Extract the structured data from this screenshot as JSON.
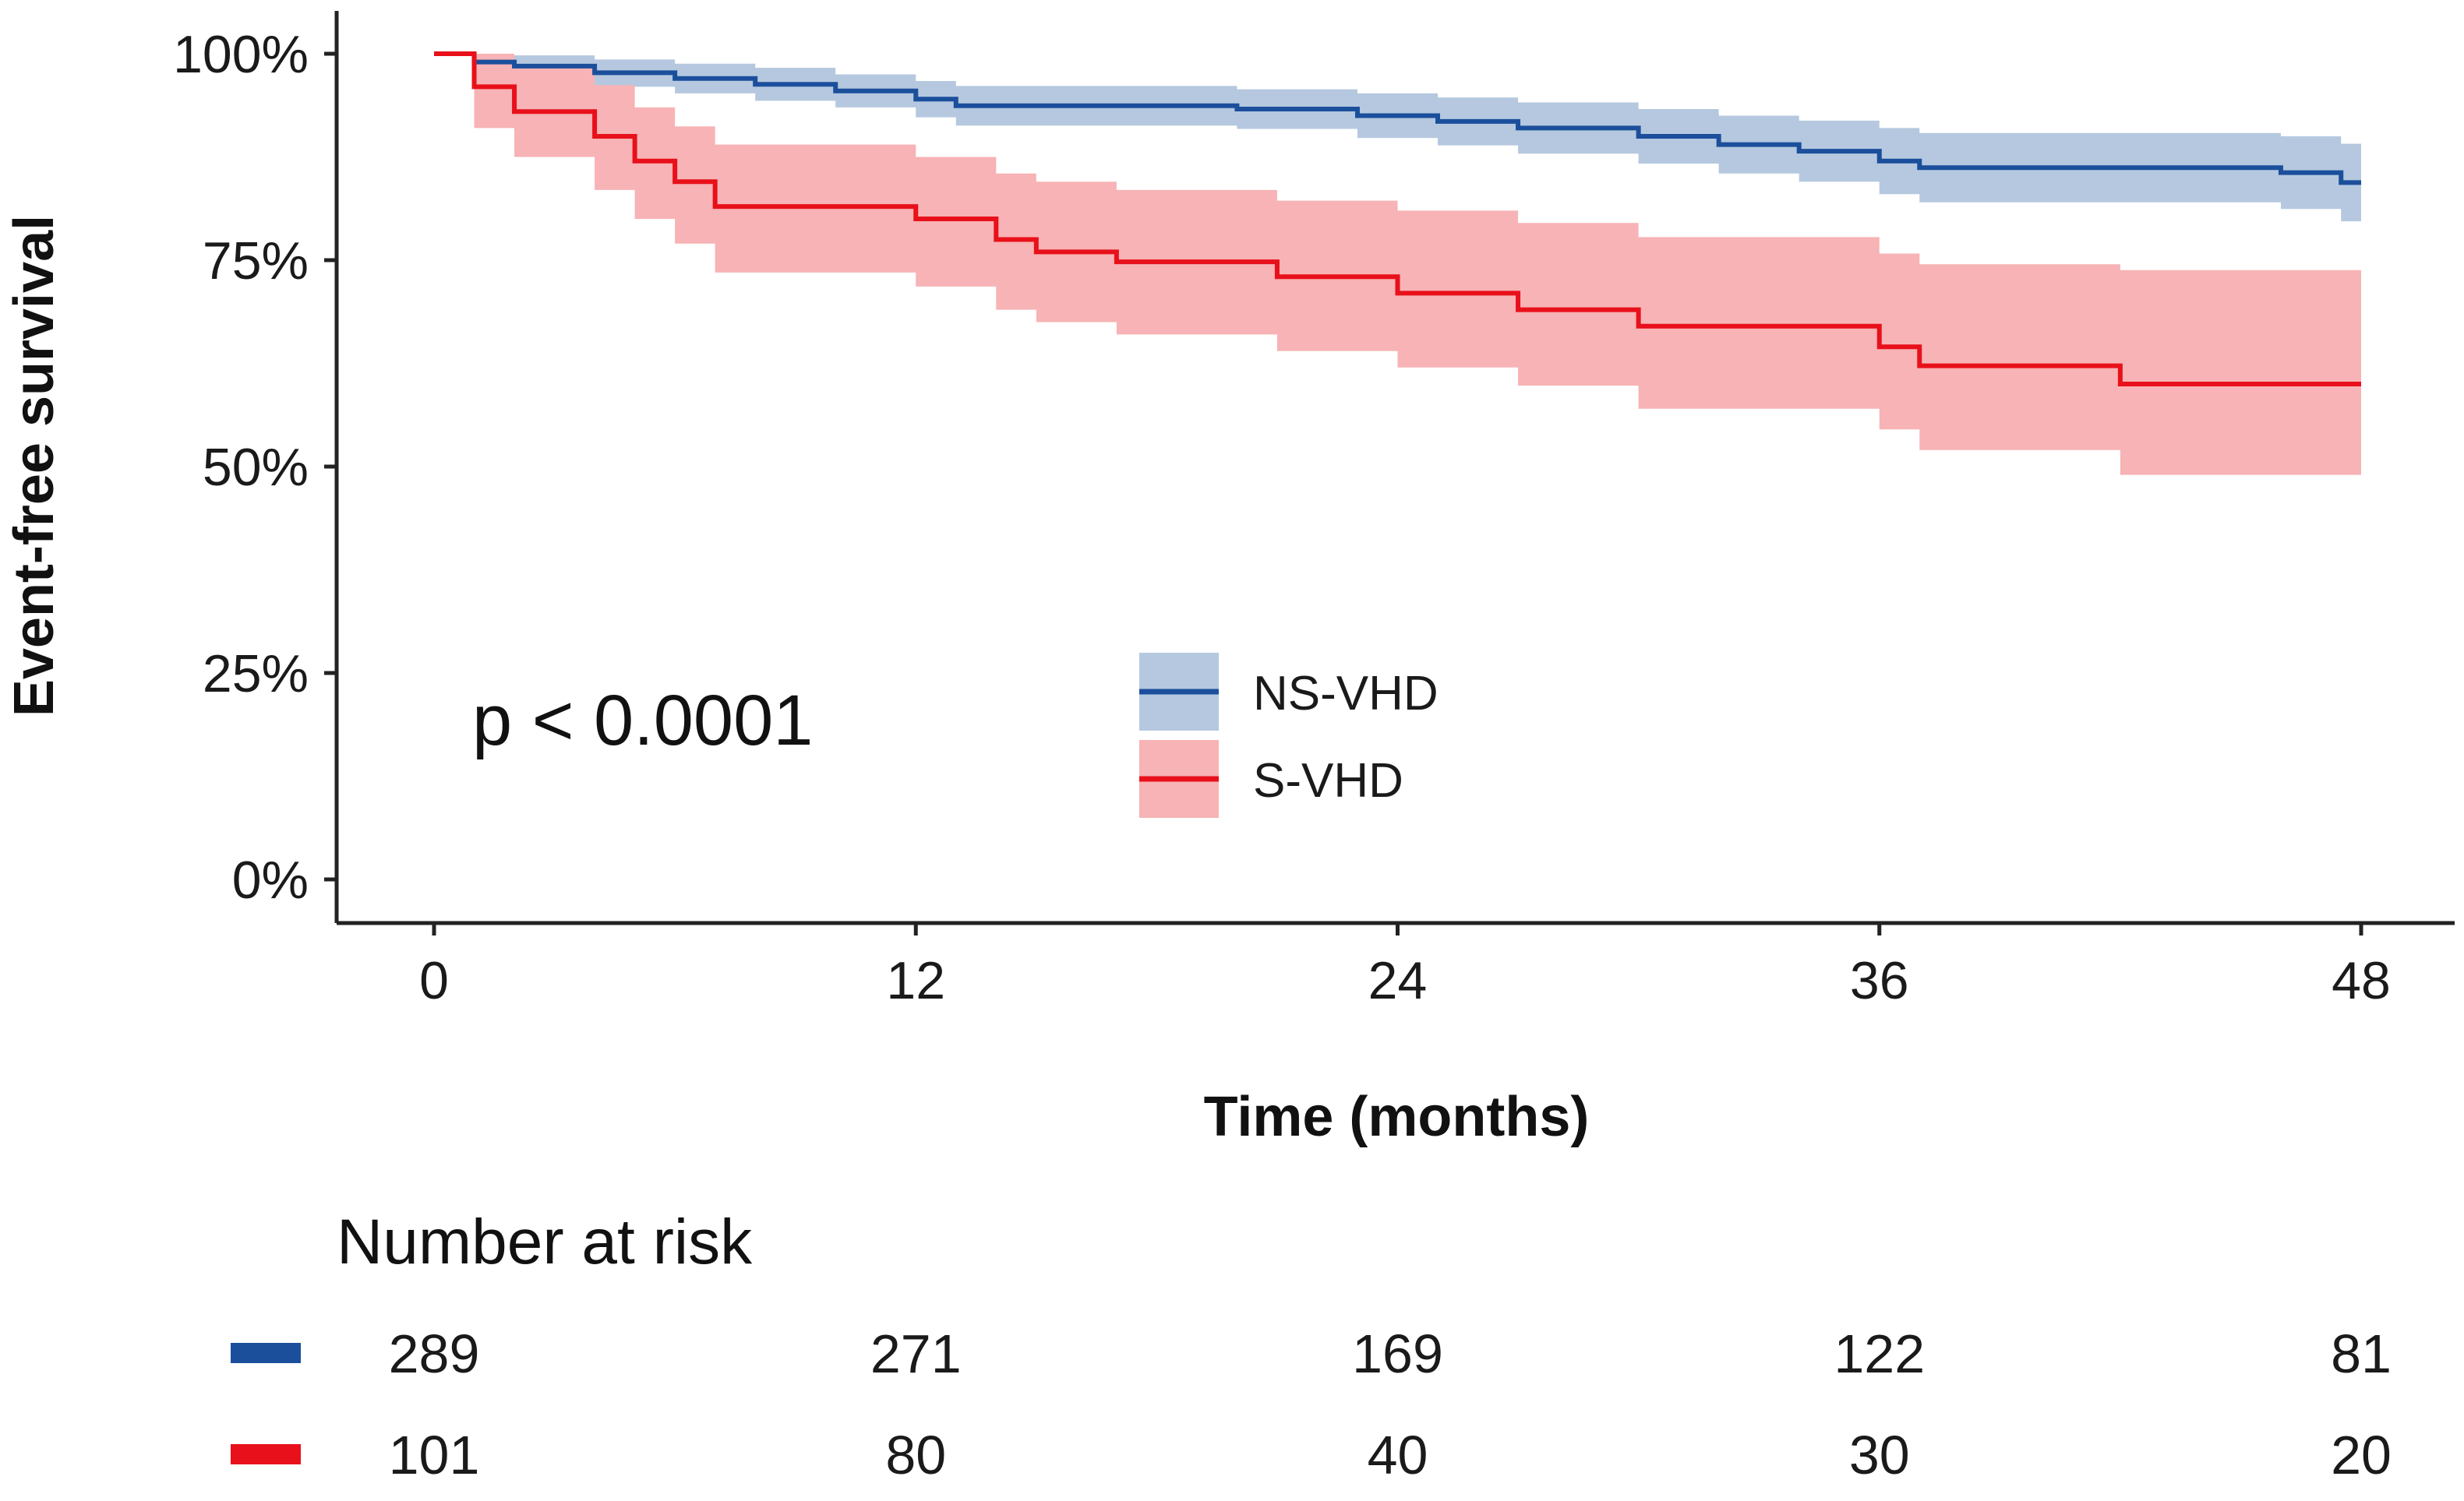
{
  "chart_data": {
    "type": "line",
    "subtype": "kaplan-meier",
    "xlabel": "Time (months)",
    "ylabel": "Event-free survival",
    "xlim": [
      0,
      48
    ],
    "ylim": [
      0,
      1
    ],
    "x_ticks": [
      0,
      12,
      24,
      36,
      48
    ],
    "y_ticks": [
      0,
      0.25,
      0.5,
      0.75,
      1.0
    ],
    "y_tick_labels": [
      "0%",
      "25%",
      "50%",
      "75%",
      "100%"
    ],
    "annotation": "p < 0.0001",
    "legend_position": "center",
    "series": [
      {
        "name": "NS-VHD",
        "color": "#1b4f9c",
        "band_color": "#b5c8df",
        "steps": [
          [
            0,
            1.0
          ],
          [
            1,
            0.99
          ],
          [
            2,
            0.985
          ],
          [
            4,
            0.977
          ],
          [
            6,
            0.97
          ],
          [
            8,
            0.963
          ],
          [
            10,
            0.955
          ],
          [
            12,
            0.945
          ],
          [
            13,
            0.937
          ],
          [
            15,
            0.937
          ],
          [
            20,
            0.933
          ],
          [
            23,
            0.925
          ],
          [
            25,
            0.918
          ],
          [
            27,
            0.91
          ],
          [
            30,
            0.9
          ],
          [
            32,
            0.89
          ],
          [
            34,
            0.882
          ],
          [
            36,
            0.87
          ],
          [
            37,
            0.862
          ],
          [
            46,
            0.856
          ],
          [
            47.5,
            0.844
          ],
          [
            48,
            0.844
          ]
        ],
        "lower": [
          [
            0,
            1.0
          ],
          [
            1,
            0.975
          ],
          [
            2,
            0.97
          ],
          [
            4,
            0.96
          ],
          [
            6,
            0.952
          ],
          [
            8,
            0.943
          ],
          [
            10,
            0.935
          ],
          [
            12,
            0.923
          ],
          [
            13,
            0.913
          ],
          [
            15,
            0.913
          ],
          [
            20,
            0.909
          ],
          [
            23,
            0.898
          ],
          [
            25,
            0.889
          ],
          [
            27,
            0.879
          ],
          [
            30,
            0.867
          ],
          [
            32,
            0.855
          ],
          [
            34,
            0.845
          ],
          [
            36,
            0.83
          ],
          [
            37,
            0.82
          ],
          [
            46,
            0.812
          ],
          [
            47.5,
            0.797
          ],
          [
            48,
            0.797
          ]
        ],
        "upper": [
          [
            0,
            1.0
          ],
          [
            1,
            1.0
          ],
          [
            2,
            0.998
          ],
          [
            4,
            0.993
          ],
          [
            6,
            0.988
          ],
          [
            8,
            0.983
          ],
          [
            10,
            0.975
          ],
          [
            12,
            0.967
          ],
          [
            13,
            0.961
          ],
          [
            15,
            0.961
          ],
          [
            20,
            0.957
          ],
          [
            23,
            0.952
          ],
          [
            25,
            0.947
          ],
          [
            27,
            0.941
          ],
          [
            30,
            0.933
          ],
          [
            32,
            0.925
          ],
          [
            34,
            0.919
          ],
          [
            36,
            0.91
          ],
          [
            37,
            0.904
          ],
          [
            46,
            0.9
          ],
          [
            47.5,
            0.891
          ],
          [
            48,
            0.891
          ]
        ]
      },
      {
        "name": "S-VHD",
        "color": "#e8101a",
        "band_color": "#f7b3b5",
        "steps": [
          [
            0,
            1.0
          ],
          [
            1,
            0.96
          ],
          [
            2,
            0.93
          ],
          [
            4,
            0.9
          ],
          [
            5,
            0.87
          ],
          [
            6,
            0.845
          ],
          [
            7,
            0.815
          ],
          [
            12,
            0.8
          ],
          [
            14,
            0.775
          ],
          [
            15,
            0.76
          ],
          [
            17,
            0.748
          ],
          [
            21,
            0.73
          ],
          [
            24,
            0.71
          ],
          [
            27,
            0.69
          ],
          [
            30,
            0.67
          ],
          [
            36,
            0.645
          ],
          [
            37,
            0.622
          ],
          [
            42,
            0.6
          ],
          [
            48,
            0.6
          ]
        ],
        "lower": [
          [
            0,
            1.0
          ],
          [
            1,
            0.91
          ],
          [
            2,
            0.875
          ],
          [
            4,
            0.835
          ],
          [
            5,
            0.8
          ],
          [
            6,
            0.77
          ],
          [
            7,
            0.735
          ],
          [
            12,
            0.718
          ],
          [
            14,
            0.69
          ],
          [
            15,
            0.675
          ],
          [
            17,
            0.66
          ],
          [
            21,
            0.64
          ],
          [
            24,
            0.62
          ],
          [
            27,
            0.598
          ],
          [
            30,
            0.57
          ],
          [
            36,
            0.545
          ],
          [
            37,
            0.52
          ],
          [
            42,
            0.49
          ],
          [
            48,
            0.49
          ]
        ],
        "upper": [
          [
            0,
            1.0
          ],
          [
            1,
            1.0
          ],
          [
            2,
            0.985
          ],
          [
            4,
            0.962
          ],
          [
            5,
            0.935
          ],
          [
            6,
            0.912
          ],
          [
            7,
            0.89
          ],
          [
            12,
            0.875
          ],
          [
            14,
            0.855
          ],
          [
            15,
            0.845
          ],
          [
            17,
            0.835
          ],
          [
            21,
            0.822
          ],
          [
            24,
            0.81
          ],
          [
            27,
            0.795
          ],
          [
            30,
            0.778
          ],
          [
            36,
            0.758
          ],
          [
            37,
            0.745
          ],
          [
            42,
            0.738
          ],
          [
            48,
            0.738
          ]
        ]
      }
    ],
    "risk_table": {
      "title": "Number at risk",
      "times": [
        0,
        12,
        24,
        36,
        48
      ],
      "rows": [
        {
          "name": "NS-VHD",
          "color": "#1b4f9c",
          "values": [
            "289",
            "271",
            "169",
            "122",
            "81"
          ]
        },
        {
          "name": "S-VHD",
          "color": "#e8101a",
          "values": [
            "101",
            "80",
            "40",
            "30",
            "20"
          ]
        }
      ]
    }
  }
}
